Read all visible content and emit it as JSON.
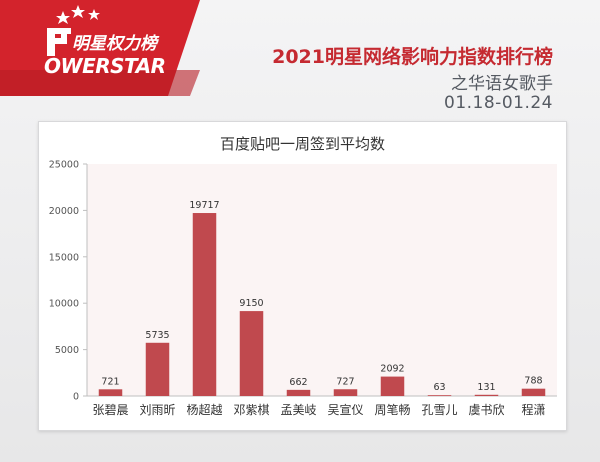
{
  "header": {
    "brand_cn": "明星权力榜",
    "brand_en": "OWERSTAR",
    "title": "2021明星网络影响力指数排行榜",
    "subtitle": "之华语女歌手",
    "date_range": "01.18-01.24"
  },
  "colors": {
    "brand_red": "#c52a31",
    "bar": "#c0494e"
  },
  "chart_data": {
    "type": "bar",
    "title": "百度贴吧一周签到平均数",
    "categories": [
      "张碧晨",
      "刘雨昕",
      "杨超越",
      "邓紫棋",
      "孟美岐",
      "吴宣仪",
      "周笔畅",
      "孔雪儿",
      "虞书欣",
      "程潇"
    ],
    "values": [
      721,
      5735,
      19717,
      9150,
      662,
      727,
      2092,
      63,
      131,
      788
    ],
    "data_labels": [
      "721",
      "5735",
      "19717",
      "9150",
      "662",
      "727",
      "2092",
      "63",
      "131",
      "788"
    ],
    "y_ticks": [
      "0",
      "5000",
      "10000",
      "15000",
      "20000",
      "25000"
    ],
    "ylim": [
      0,
      25000
    ],
    "grid": false,
    "xlabel": "",
    "ylabel": ""
  }
}
